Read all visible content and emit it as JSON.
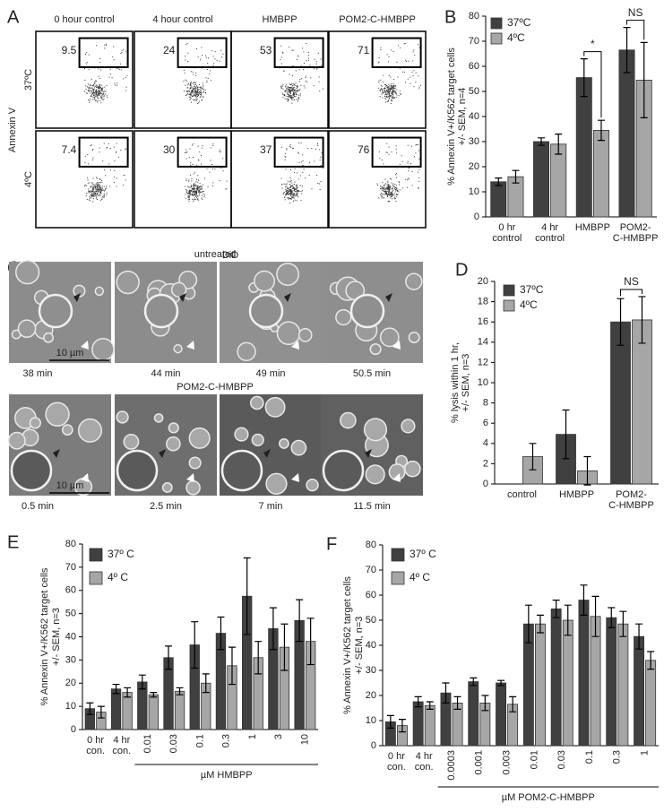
{
  "panel_labels": [
    "A",
    "B",
    "C",
    "D",
    "E",
    "F"
  ],
  "flow_panel": {
    "column_titles": [
      "0 hour control",
      "4 hour control",
      "HMBPP",
      "POM2-C-HMBPP"
    ],
    "row_titles": [
      "37ºC",
      "4ºC"
    ],
    "y_label": "Annexin V",
    "x_label": "DiD",
    "gate_percentages": [
      [
        9.5,
        24,
        53,
        71
      ],
      [
        7.4,
        30,
        37,
        76
      ]
    ]
  },
  "microscopy_panel": {
    "rows": [
      {
        "title": "untreated",
        "times": [
          "38 min",
          "44 min",
          "49 min",
          "50.5 min"
        ]
      },
      {
        "title": "POM2-C-HMBPP",
        "times": [
          "0.5 min",
          "2.5 min",
          "7 min",
          "11.5 min"
        ]
      }
    ],
    "scale_bar": "10 µm"
  },
  "chart_data": [
    {
      "type": "bar",
      "y_label": [
        "% Annexin V+/K562 target cells",
        "+/- SEM, n=4"
      ],
      "categories": [
        [
          "0 hr",
          "control"
        ],
        [
          "4 hr",
          "control"
        ],
        [
          "HMBPP"
        ],
        [
          "POM2-",
          "C-HMBPP"
        ]
      ],
      "series": [
        {
          "name": "37ºC",
          "color": "#404040",
          "values": [
            14,
            30,
            55.5,
            66.5
          ],
          "errors": [
            1.5,
            1.5,
            7.5,
            9
          ]
        },
        {
          "name": "4ºC",
          "color": "#a6a6a6",
          "values": [
            16,
            29,
            34.5,
            54.5
          ],
          "errors": [
            2.5,
            4,
            4,
            15
          ]
        }
      ],
      "ylim": [
        0,
        80
      ],
      "yticks": [
        0,
        10,
        20,
        30,
        40,
        50,
        60,
        70,
        80
      ],
      "annotations": [
        "*",
        "NS"
      ]
    },
    {
      "type": "bar",
      "y_label": [
        "% lysis within 1 hr,",
        "+/- SEM, n=3"
      ],
      "categories": [
        [
          "control"
        ],
        [
          "HMBPP"
        ],
        [
          "POM2-",
          "C-HMBPP"
        ]
      ],
      "series": [
        {
          "name": "37ºC",
          "color": "#404040",
          "values": [
            0,
            4.9,
            16
          ],
          "errors": [
            null,
            2.4,
            2.3
          ]
        },
        {
          "name": "4ºC",
          "color": "#a6a6a6",
          "values": [
            2.7,
            1.3,
            16.2
          ],
          "errors": [
            1.3,
            1.4,
            2.3
          ]
        }
      ],
      "ylim": [
        0,
        20
      ],
      "yticks": [
        0,
        2,
        4,
        6,
        8,
        10,
        12,
        14,
        16,
        18,
        20
      ],
      "annotations": [
        "NS"
      ]
    },
    {
      "type": "bar",
      "y_label": [
        "% Annexin V+/K562 target cells",
        "+/- SEM, n=3"
      ],
      "x_label": "µM HMBPP",
      "categories": [
        [
          "0 hr",
          "con."
        ],
        [
          "4 hr",
          "con."
        ],
        "0.01",
        "0.03",
        "0.1",
        "0.3",
        "1",
        "3",
        "10"
      ],
      "series": [
        {
          "name": "37º C",
          "color": "#404040",
          "values": [
            9,
            17.5,
            20.5,
            31,
            36.5,
            41.5,
            57.5,
            43.5,
            47
          ],
          "errors": [
            2.5,
            2,
            3,
            5,
            10,
            7,
            16.5,
            9,
            9
          ]
        },
        {
          "name": "4º C",
          "color": "#a6a6a6",
          "values": [
            7.5,
            16,
            15,
            16.5,
            20,
            27.5,
            31,
            35.5,
            38
          ],
          "errors": [
            2.5,
            2,
            1,
            1.5,
            4,
            8,
            7,
            10,
            10
          ]
        }
      ],
      "ylim": [
        0,
        80
      ],
      "yticks": [
        0,
        10,
        20,
        30,
        40,
        50,
        60,
        70,
        80
      ]
    },
    {
      "type": "bar",
      "y_label": [
        "% Annexin V+/K562 target cells",
        "+/- SEM, n=3"
      ],
      "x_label": "µM POM2-C-HMBPP",
      "categories": [
        [
          "0 hr",
          "con."
        ],
        [
          "4 hr",
          "con."
        ],
        "0.0003",
        "0.001",
        "0.003",
        "0.01",
        "0.03",
        "0.1",
        "0.3",
        "1"
      ],
      "series": [
        {
          "name": "37º C",
          "color": "#404040",
          "values": [
            9.5,
            17.5,
            21,
            25.5,
            25,
            48.5,
            54.5,
            58,
            51,
            43.5
          ],
          "errors": [
            2.5,
            2,
            4,
            1.5,
            1,
            7.5,
            3.5,
            6,
            4,
            5
          ]
        },
        {
          "name": "4º C",
          "color": "#a6a6a6",
          "values": [
            8,
            16,
            17,
            17,
            16.5,
            48.5,
            50,
            51.5,
            48.5,
            34
          ],
          "errors": [
            2.5,
            1.5,
            2.5,
            3,
            3,
            3.5,
            6,
            8,
            5,
            3.5
          ]
        }
      ],
      "ylim": [
        0,
        80
      ],
      "yticks": [
        0,
        10,
        20,
        30,
        40,
        50,
        60,
        70,
        80
      ]
    }
  ]
}
